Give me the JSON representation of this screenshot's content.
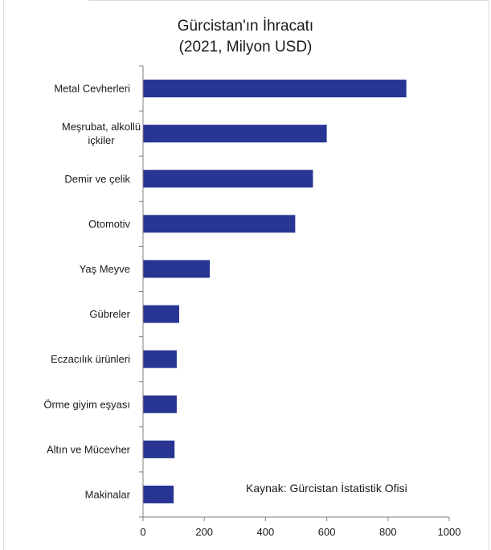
{
  "chart_data": {
    "type": "bar",
    "orientation": "horizontal",
    "title": "Gürcistan'ın İhracatı",
    "subtitle": "(2021, Milyon USD)",
    "categories": [
      "Metal Cevherleri",
      "Meşrubat, alkollü içkiler",
      "Demir ve çelik",
      "Otomotiv",
      "Yaş Meyve",
      "Gübreler",
      "Eczacılık ürünleri",
      "Örme giyim eşyası",
      "Altın ve Mücevher",
      "Makinalar"
    ],
    "values": [
      860,
      600,
      555,
      497,
      218,
      118,
      110,
      110,
      103,
      100
    ],
    "xlim": [
      0,
      1000
    ],
    "xticks": [
      0,
      200,
      400,
      600,
      800,
      1000
    ],
    "grid": false,
    "legend": "none",
    "bar_color": "#283593",
    "annotation": "Kaynak: Gürcistan İstatistik Ofisi"
  }
}
